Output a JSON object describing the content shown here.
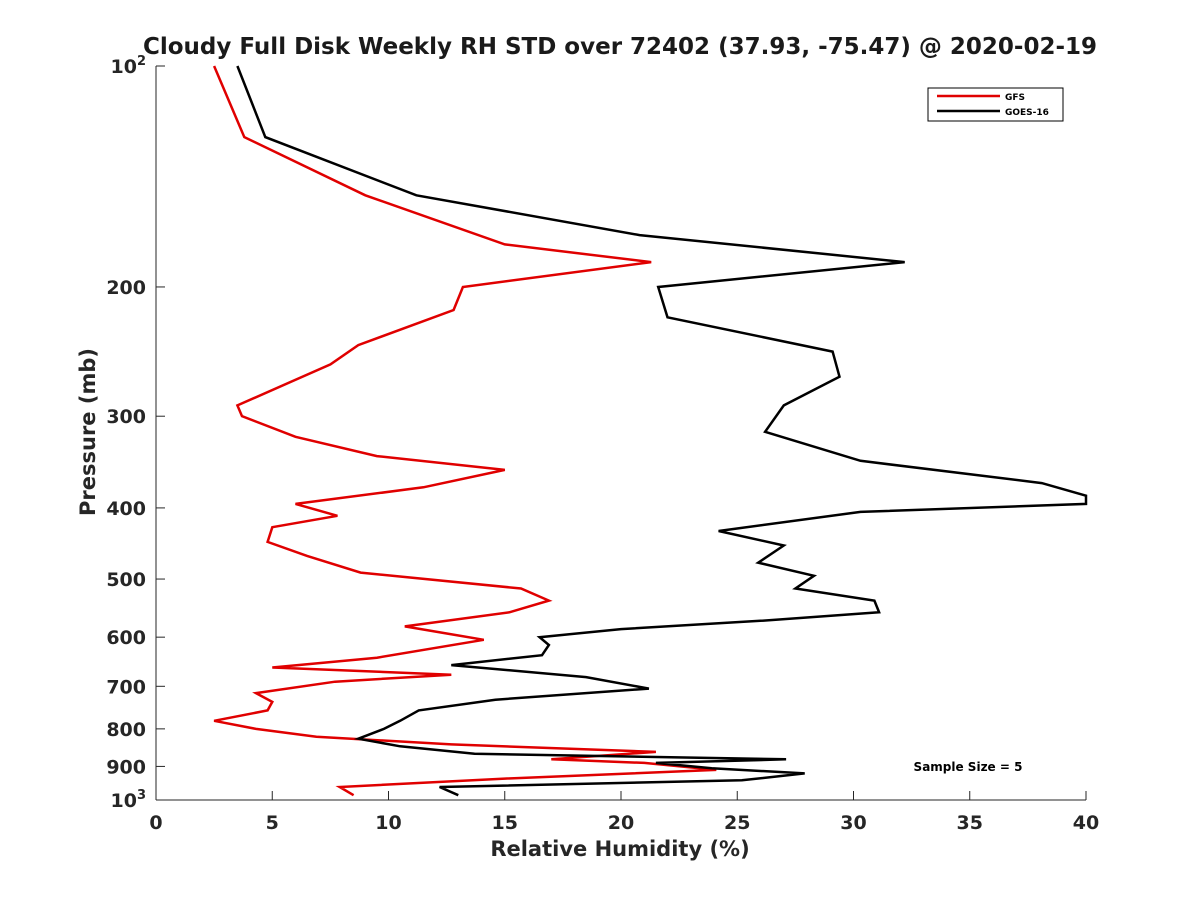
{
  "chart_data": {
    "type": "line",
    "title": "Cloudy Full Disk Weekly RH STD over 72402 (37.93, -75.47) @ 2020-02-19",
    "xlabel": "Relative Humidity (%)",
    "ylabel": "Pressure (mb)",
    "xlim": [
      0,
      40
    ],
    "ylim": [
      100,
      1000
    ],
    "y_scale": "log",
    "y_reversed": true,
    "x_ticks": [
      "0",
      "5",
      "10",
      "15",
      "20",
      "25",
      "30",
      "35",
      "40"
    ],
    "y_ticks": [
      {
        "value": 100,
        "label": "10",
        "sup": "2"
      },
      {
        "value": 200,
        "label": "200",
        "sup": ""
      },
      {
        "value": 300,
        "label": "300",
        "sup": ""
      },
      {
        "value": 400,
        "label": "400",
        "sup": ""
      },
      {
        "value": 500,
        "label": "500",
        "sup": ""
      },
      {
        "value": 600,
        "label": "600",
        "sup": ""
      },
      {
        "value": 700,
        "label": "700",
        "sup": ""
      },
      {
        "value": 800,
        "label": "800",
        "sup": ""
      },
      {
        "value": 900,
        "label": "900",
        "sup": ""
      },
      {
        "value": 1000,
        "label": "10",
        "sup": "3"
      }
    ],
    "legend_position": "top-right",
    "grid": false,
    "annotation": "Sample Size = 5",
    "series": [
      {
        "name": "GFS",
        "color": "#e00000",
        "points": [
          [
            2.5,
            100
          ],
          [
            3.8,
            125
          ],
          [
            9.0,
            150
          ],
          [
            15.0,
            175
          ],
          [
            21.3,
            185
          ],
          [
            13.2,
            200
          ],
          [
            12.8,
            215
          ],
          [
            8.7,
            240
          ],
          [
            7.5,
            255
          ],
          [
            3.5,
            290
          ],
          [
            3.7,
            300
          ],
          [
            6.0,
            320
          ],
          [
            9.5,
            340
          ],
          [
            15.0,
            355
          ],
          [
            11.5,
            375
          ],
          [
            6.0,
            395
          ],
          [
            7.8,
            410
          ],
          [
            5.0,
            425
          ],
          [
            4.8,
            445
          ],
          [
            6.5,
            465
          ],
          [
            8.8,
            490
          ],
          [
            15.7,
            515
          ],
          [
            16.9,
            535
          ],
          [
            15.2,
            555
          ],
          [
            10.7,
            580
          ],
          [
            14.1,
            605
          ],
          [
            9.5,
            640
          ],
          [
            5.0,
            660
          ],
          [
            12.7,
            675
          ],
          [
            7.7,
            690
          ],
          [
            4.3,
            715
          ],
          [
            5.0,
            735
          ],
          [
            4.8,
            755
          ],
          [
            2.5,
            780
          ],
          [
            4.3,
            800
          ],
          [
            6.9,
            820
          ],
          [
            12.7,
            840
          ],
          [
            21.5,
            860
          ],
          [
            17.0,
            880
          ],
          [
            21.0,
            890
          ],
          [
            24.1,
            910
          ],
          [
            15.0,
            935
          ],
          [
            7.9,
            960
          ],
          [
            8.5,
            985
          ]
        ]
      },
      {
        "name": "GOES-16",
        "color": "#000000",
        "points": [
          [
            3.5,
            100
          ],
          [
            4.7,
            125
          ],
          [
            11.2,
            150
          ],
          [
            20.8,
            170
          ],
          [
            32.2,
            185
          ],
          [
            21.6,
            200
          ],
          [
            22.0,
            220
          ],
          [
            29.1,
            245
          ],
          [
            29.4,
            265
          ],
          [
            27.0,
            290
          ],
          [
            26.2,
            315
          ],
          [
            30.3,
            345
          ],
          [
            38.1,
            370
          ],
          [
            40.0,
            385
          ],
          [
            40.0,
            395
          ],
          [
            30.3,
            405
          ],
          [
            24.2,
            430
          ],
          [
            27.0,
            450
          ],
          [
            25.9,
            475
          ],
          [
            28.3,
            495
          ],
          [
            27.5,
            515
          ],
          [
            30.9,
            535
          ],
          [
            31.1,
            555
          ],
          [
            26.0,
            570
          ],
          [
            20.0,
            585
          ],
          [
            16.5,
            600
          ],
          [
            16.9,
            615
          ],
          [
            16.6,
            635
          ],
          [
            12.7,
            655
          ],
          [
            18.5,
            680
          ],
          [
            21.2,
            705
          ],
          [
            14.6,
            730
          ],
          [
            11.3,
            755
          ],
          [
            10.5,
            780
          ],
          [
            9.8,
            800
          ],
          [
            8.7,
            825
          ],
          [
            10.5,
            845
          ],
          [
            13.7,
            865
          ],
          [
            27.1,
            880
          ],
          [
            21.5,
            890
          ],
          [
            23.9,
            905
          ],
          [
            27.9,
            920
          ],
          [
            25.2,
            940
          ],
          [
            12.2,
            960
          ],
          [
            13.0,
            985
          ]
        ]
      }
    ]
  }
}
